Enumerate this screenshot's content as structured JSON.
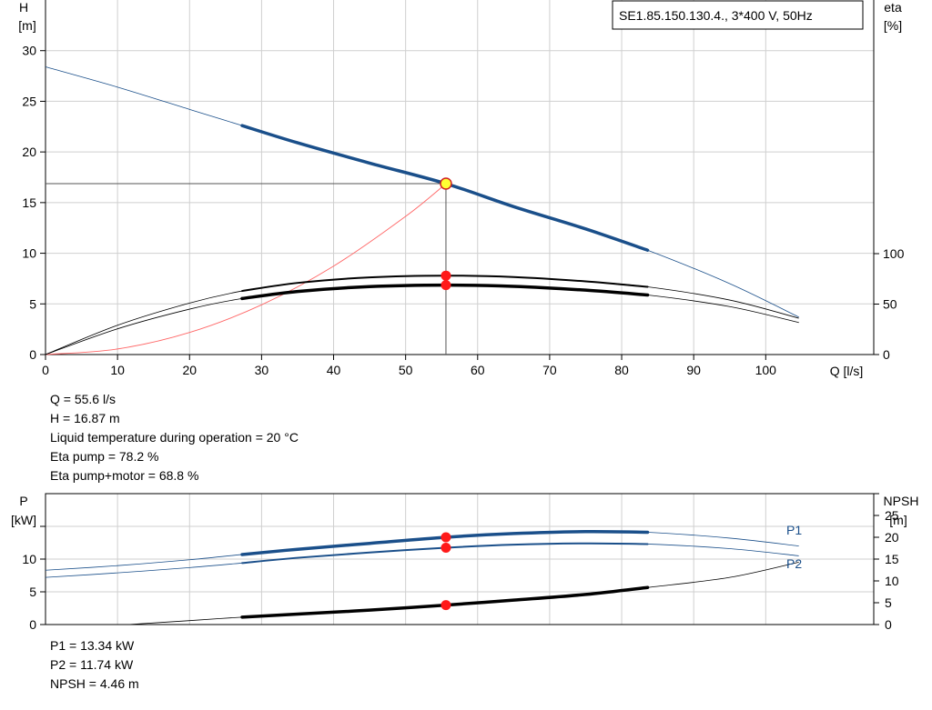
{
  "chart_data": [
    {
      "type": "line",
      "title": "",
      "legend": "SE1.85.150.130.4., 3*400 V, 50Hz",
      "xlabel": "Q [l/s]",
      "ylabel_left": [
        "H",
        "[m]"
      ],
      "ylabel_right": [
        "eta",
        "[%]"
      ],
      "xlim": [
        0,
        115
      ],
      "ylim_left": [
        0,
        35
      ],
      "ylim_right_eta": [
        0,
        100
      ],
      "x_ticks": [
        0,
        10,
        20,
        30,
        40,
        50,
        60,
        70,
        80,
        90,
        100
      ],
      "y_ticks_left": [
        0,
        5,
        10,
        15,
        20,
        25,
        30
      ],
      "y_ticks_right": [
        0,
        50,
        100
      ],
      "grid": true,
      "series": [
        {
          "key": "H",
          "color": "#1a4f8a",
          "x": [
            0,
            10,
            20,
            27.3,
            35,
            45,
            55.6,
            65,
            75,
            83.6,
            95,
            104.6
          ],
          "y": [
            28.4,
            26.4,
            24.2,
            22.6,
            20.9,
            18.9,
            16.87,
            14.6,
            12.4,
            10.3,
            7.0,
            3.7
          ],
          "bold_range": [
            27.3,
            83.6
          ]
        },
        {
          "key": "eta_pump",
          "color": "#000000",
          "x": [
            0,
            10,
            20,
            27.3,
            35,
            45,
            55.6,
            65,
            75,
            83.6,
            95,
            104.6
          ],
          "y": [
            0,
            29,
            51,
            63,
            71,
            76.5,
            78.2,
            76.8,
            72.5,
            67.1,
            54,
            36
          ],
          "bold_range": [
            27.3,
            83.6
          ]
        },
        {
          "key": "eta_pump_motor",
          "color": "#000000",
          "x": [
            0,
            10,
            20,
            27.3,
            35,
            45,
            55.6,
            65,
            75,
            83.6,
            95,
            104.6
          ],
          "y": [
            0,
            25.5,
            45,
            55.5,
            62.5,
            67.3,
            68.8,
            67.6,
            63.8,
            59,
            47.5,
            31.7
          ],
          "bold_range": [
            27.3,
            83.6
          ]
        },
        {
          "key": "system_curve",
          "color": "#ff6666",
          "x": [
            0,
            10,
            20,
            30,
            40,
            50,
            55.6
          ],
          "y": [
            0,
            0.55,
            2.18,
            4.91,
            8.73,
            13.64,
            16.87
          ]
        }
      ],
      "operating_point": {
        "Q": 55.6,
        "H": 16.87,
        "eta_pump": 78.2,
        "eta_pump_motor": 68.8
      }
    },
    {
      "type": "line",
      "title": "",
      "xlabel": "",
      "ylabel_left": [
        "P",
        "[kW]"
      ],
      "ylabel_right": [
        "NPSH",
        "[m]"
      ],
      "xlim": [
        0,
        115
      ],
      "ylim_left": [
        0,
        20
      ],
      "ylim_right": [
        0,
        30
      ],
      "y_ticks_left": [
        0,
        5,
        10
      ],
      "y_ticks_right": [
        0,
        5,
        10,
        15,
        20,
        25
      ],
      "grid": true,
      "series": [
        {
          "name": "P1",
          "color": "#1a4f8a",
          "x": [
            0,
            10,
            20,
            27.3,
            35,
            45,
            55.6,
            65,
            75,
            83.6,
            95,
            104.6
          ],
          "y": [
            8.3,
            9.0,
            9.9,
            10.7,
            11.5,
            12.4,
            13.34,
            13.9,
            14.2,
            14.1,
            13.2,
            12.0
          ],
          "bold_range": [
            27.3,
            83.6
          ]
        },
        {
          "name": "P2",
          "color": "#1a4f8a",
          "x": [
            0,
            10,
            20,
            27.3,
            35,
            45,
            55.6,
            65,
            75,
            83.6,
            95,
            104.6
          ],
          "y": [
            7.2,
            7.9,
            8.7,
            9.4,
            10.2,
            11.0,
            11.74,
            12.2,
            12.4,
            12.3,
            11.6,
            10.5
          ],
          "bold_range": [
            27.3,
            83.6
          ]
        },
        {
          "key": "NPSH",
          "color": "#000000",
          "axis": "right",
          "x": [
            11.5,
            20,
            27.3,
            35,
            45,
            55.6,
            65,
            75,
            83.6,
            95,
            104.6
          ],
          "y": [
            0,
            0.9,
            1.7,
            2.4,
            3.3,
            4.46,
            5.6,
            6.9,
            8.5,
            10.8,
            14.3
          ],
          "bold_range": [
            27.3,
            83.6
          ]
        }
      ],
      "operating_point": {
        "Q": 55.6,
        "P1": 13.34,
        "P2": 11.74,
        "NPSH": 4.46
      }
    }
  ],
  "info_top": [
    "Q = 55.6 l/s",
    "H = 16.87 m",
    "Liquid temperature during operation = 20 °C",
    "Eta pump = 78.2 %",
    "Eta pump+motor = 68.8 %"
  ],
  "info_bottom": [
    "P1 = 13.34 kW",
    "P2 = 11.74 kW",
    "NPSH = 4.46 m"
  ]
}
